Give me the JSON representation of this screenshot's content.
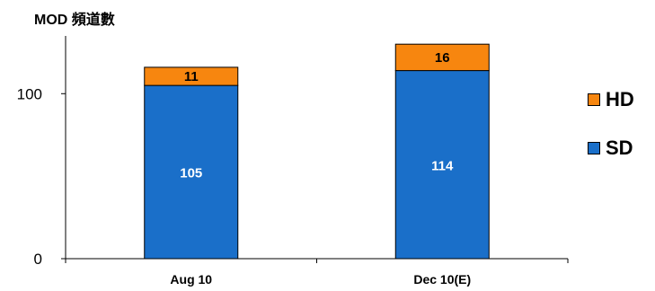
{
  "chart_data": {
    "type": "bar",
    "stacked": true,
    "title": "MOD 頻道數",
    "categories": [
      "Aug 10",
      "Dec 10(E)"
    ],
    "series": [
      {
        "name": "SD",
        "values": [
          105,
          114
        ],
        "color": "#1a6fc9"
      },
      {
        "name": "HD",
        "values": [
          11,
          16
        ],
        "color": "#f7860f"
      }
    ],
    "yticks": [
      0,
      100
    ],
    "ylim": [
      0,
      135
    ],
    "legend_position": "right",
    "grid": false
  }
}
